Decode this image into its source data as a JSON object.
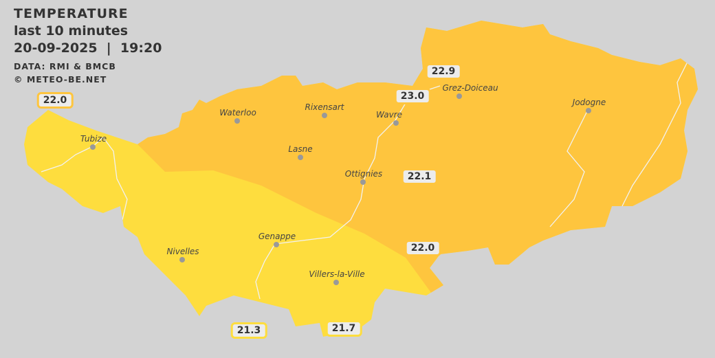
{
  "header": {
    "title": "TEMPERATURE",
    "period": "last 10 minutes",
    "datetime": "20-09-2025  |  19:20",
    "source": "DATA: RMI & BMCB",
    "copyright": "© METEO-BE.NET"
  },
  "colors": {
    "background": "#d3d3d3",
    "zone_21": "#fedd3e",
    "zone_22": "#fec53e",
    "river": "#f2f2f2"
  },
  "cities": [
    {
      "name": "Waterloo"
    },
    {
      "name": "Rixensart"
    },
    {
      "name": "Wavre"
    },
    {
      "name": "Grez-Doiceau"
    },
    {
      "name": "Jodogne"
    },
    {
      "name": "Tubize"
    },
    {
      "name": "Lasne"
    },
    {
      "name": "Ottignies"
    },
    {
      "name": "Genappe"
    },
    {
      "name": "Nivelles"
    },
    {
      "name": "Villers-la-Ville"
    }
  ],
  "readings": [
    {
      "value": "22.0",
      "zone": "22"
    },
    {
      "value": "22.9",
      "zone": "22"
    },
    {
      "value": "23.0",
      "zone": "22"
    },
    {
      "value": "22.1",
      "zone": "22"
    },
    {
      "value": "22.0",
      "zone": "22"
    },
    {
      "value": "21.3",
      "zone": "21"
    },
    {
      "value": "21.7",
      "zone": "21"
    }
  ]
}
